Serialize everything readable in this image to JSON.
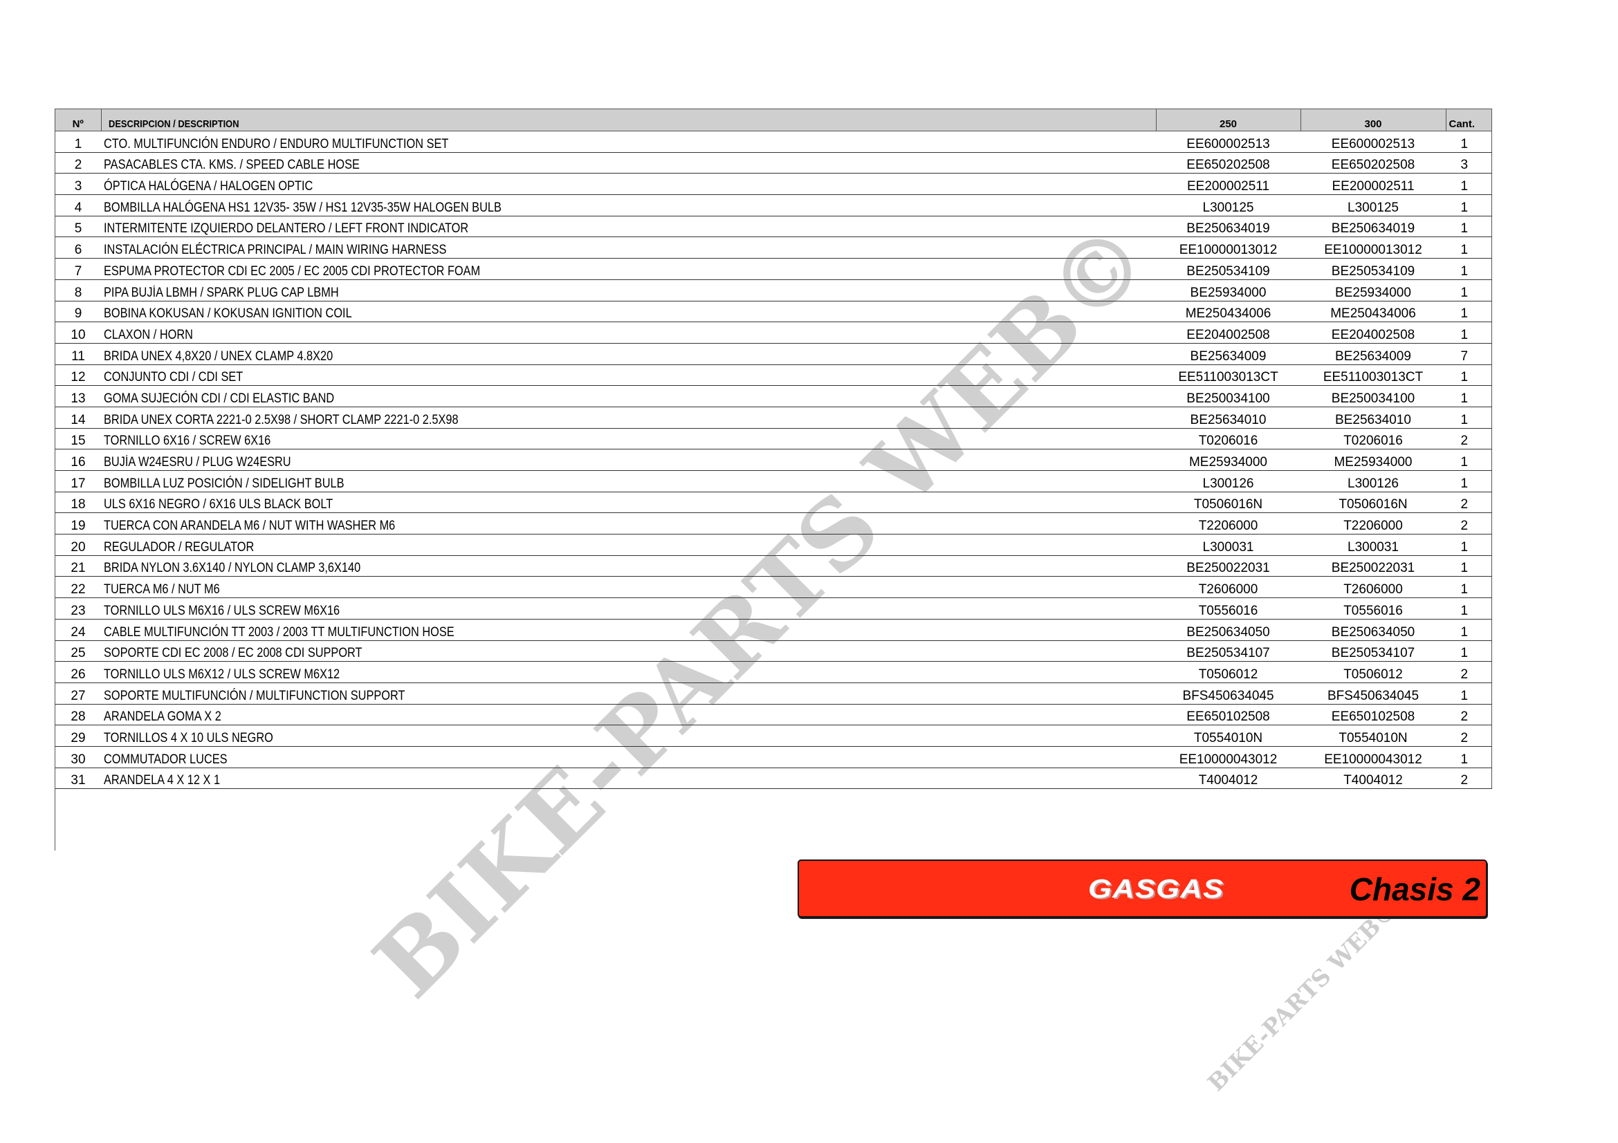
{
  "table": {
    "headers": {
      "no": "Nº",
      "description": "DESCRIPCION / DESCRIPTION",
      "m250": "250",
      "m300": "300",
      "qty": "Cant."
    },
    "rows": [
      {
        "no": "1",
        "description": "CTO. MULTIFUNCIÓN ENDURO / ENDURO MULTIFUNCTION SET",
        "m250": "EE600002513",
        "m300": "EE600002513",
        "qty": "1"
      },
      {
        "no": "2",
        "description": "PASACABLES CTA. KMS. / SPEED CABLE HOSE",
        "m250": "EE650202508",
        "m300": "EE650202508",
        "qty": "3"
      },
      {
        "no": "3",
        "description": "ÓPTICA HALÓGENA / HALOGEN OPTIC",
        "m250": "EE200002511",
        "m300": "EE200002511",
        "qty": "1"
      },
      {
        "no": "4",
        "description": "BOMBILLA HALÓGENA HS1 12V35- 35W / HS1 12V35-35W HALOGEN BULB",
        "m250": "L300125",
        "m300": "L300125",
        "qty": "1"
      },
      {
        "no": "5",
        "description": "INTERMITENTE IZQUIERDO DELANTERO / LEFT FRONT INDICATOR",
        "m250": "BE250634019",
        "m300": "BE250634019",
        "qty": "1"
      },
      {
        "no": "6",
        "description": "INSTALACIÓN ELÉCTRICA PRINCIPAL / MAIN WIRING HARNESS",
        "m250": "EE10000013012",
        "m300": "EE10000013012",
        "qty": "1"
      },
      {
        "no": "7",
        "description": "ESPUMA PROTECTOR CDI EC 2005 / EC 2005 CDI PROTECTOR FOAM",
        "m250": "BE250534109",
        "m300": "BE250534109",
        "qty": "1"
      },
      {
        "no": "8",
        "description": "PIPA BUJÍA LBMH / SPARK PLUG CAP LBMH",
        "m250": "BE25934000",
        "m300": "BE25934000",
        "qty": "1"
      },
      {
        "no": "9",
        "description": "BOBINA KOKUSAN / KOKUSAN IGNITION COIL",
        "m250": "ME250434006",
        "m300": "ME250434006",
        "qty": "1"
      },
      {
        "no": "10",
        "description": "CLAXON / HORN",
        "m250": "EE204002508",
        "m300": "EE204002508",
        "qty": "1"
      },
      {
        "no": "11",
        "description": "BRIDA UNEX 4,8X20 / UNEX CLAMP 4.8X20",
        "m250": "BE25634009",
        "m300": "BE25634009",
        "qty": "7"
      },
      {
        "no": "12",
        "description": "CONJUNTO CDI / CDI SET",
        "m250": "EE511003013CT",
        "m300": "EE511003013CT",
        "qty": "1"
      },
      {
        "no": "13",
        "description": "GOMA SUJECIÓN CDI / CDI ELASTIC BAND",
        "m250": "BE250034100",
        "m300": "BE250034100",
        "qty": "1"
      },
      {
        "no": "14",
        "description": "BRIDA UNEX CORTA 2221-0 2.5X98 / SHORT CLAMP 2221-0 2.5X98",
        "m250": "BE25634010",
        "m300": "BE25634010",
        "qty": "1"
      },
      {
        "no": "15",
        "description": "TORNILLO  6X16  / SCREW 6X16",
        "m250": "T0206016",
        "m300": "T0206016",
        "qty": "2"
      },
      {
        "no": "16",
        "description": "BUJÍA W24ESRU / PLUG W24ESRU",
        "m250": "ME25934000",
        "m300": "ME25934000",
        "qty": "1"
      },
      {
        "no": "17",
        "description": "BOMBILLA LUZ POSICIÓN / SIDELIGHT BULB",
        "m250": "L300126",
        "m300": "L300126",
        "qty": "1"
      },
      {
        "no": "18",
        "description": "ULS 6X16 NEGRO / 6X16 ULS BLACK BOLT",
        "m250": "T0506016N",
        "m300": "T0506016N",
        "qty": "2"
      },
      {
        "no": "19",
        "description": "TUERCA CON ARANDELA M6 / NUT WITH WASHER M6",
        "m250": "T2206000",
        "m300": "T2206000",
        "qty": "2"
      },
      {
        "no": "20",
        "description": "REGULADOR / REGULATOR",
        "m250": "L300031",
        "m300": "L300031",
        "qty": "1"
      },
      {
        "no": "21",
        "description": "BRIDA NYLON 3.6X140 / NYLON CLAMP 3,6X140",
        "m250": "BE250022031",
        "m300": "BE250022031",
        "qty": "1"
      },
      {
        "no": "22",
        "description": "TUERCA M6 / NUT M6",
        "m250": "T2606000",
        "m300": "T2606000",
        "qty": "1"
      },
      {
        "no": "23",
        "description": "TORNILLO ULS M6X16 / ULS SCREW  M6X16",
        "m250": "T0556016",
        "m300": "T0556016",
        "qty": "1"
      },
      {
        "no": "24",
        "description": "CABLE MULTIFUNCIÓN TT 2003 / 2003 TT MULTIFUNCTION HOSE",
        "m250": "BE250634050",
        "m300": "BE250634050",
        "qty": "1"
      },
      {
        "no": "25",
        "description": "SOPORTE CDI EC 2008 / EC 2008 CDI SUPPORT",
        "m250": "BE250534107",
        "m300": "BE250534107",
        "qty": "1"
      },
      {
        "no": "26",
        "description": "TORNILLO ULS M6X12 / ULS SCREW M6X12",
        "m250": "T0506012",
        "m300": "T0506012",
        "qty": "2"
      },
      {
        "no": "27",
        "description": "SOPORTE MULTIFUNCIÓN / MULTIFUNCTION SUPPORT",
        "m250": "BFS450634045",
        "m300": "BFS450634045",
        "qty": "1"
      },
      {
        "no": "28",
        "description": "ARANDELA GOMA  X 2",
        "m250": "EE650102508",
        "m300": "EE650102508",
        "qty": "2"
      },
      {
        "no": "29",
        "description": "TORNILLOS  4 X 10 ULS NEGRO",
        "m250": "T0554010N",
        "m300": "T0554010N",
        "qty": "2"
      },
      {
        "no": "30",
        "description": "COMMUTADOR LUCES",
        "m250": "EE10000043012",
        "m300": "EE10000043012",
        "qty": "1"
      },
      {
        "no": "31",
        "description": "ARANDELA 4 X 12 X 1",
        "m250": "T4004012",
        "m300": "T4004012",
        "qty": "2"
      }
    ]
  },
  "badge": {
    "brand": "GASGAS",
    "section": "Chasis 2",
    "color": "#ff2e14"
  },
  "watermark": {
    "text": "BIKE-PARTS WEB©",
    "color": "#c8c8c8"
  }
}
